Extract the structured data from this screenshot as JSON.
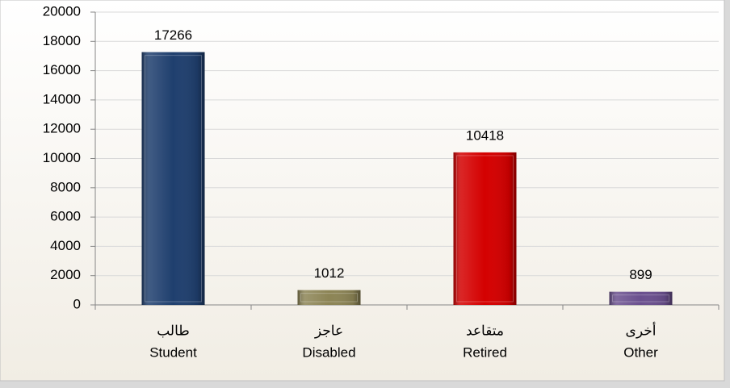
{
  "chart_data": {
    "type": "bar",
    "categories": [
      [
        "طالب",
        "Student"
      ],
      [
        "عاجز",
        "Disabled"
      ],
      [
        "متقاعد",
        "Retired"
      ],
      [
        "أخرى",
        "Other"
      ]
    ],
    "values": [
      17266,
      1012,
      10418,
      899
    ],
    "colors": [
      "#1f3f6e",
      "#8c8455",
      "#d40000",
      "#6a4f8e"
    ],
    "ylim": [
      0,
      20000
    ],
    "yticks": [
      0,
      2000,
      4000,
      6000,
      8000,
      10000,
      12000,
      14000,
      16000,
      18000,
      20000
    ],
    "grid": true
  }
}
